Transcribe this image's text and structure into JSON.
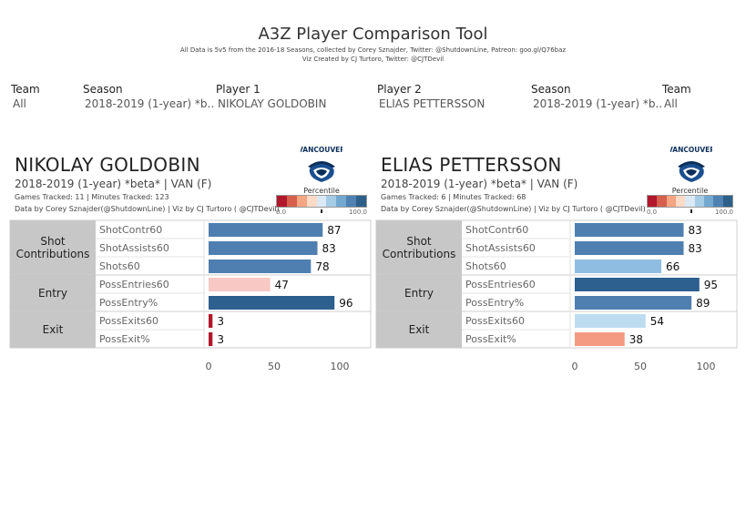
{
  "header": {
    "title": "A3Z Player Comparison Tool",
    "subtitle_line1": "All Data is 5v5 from the 2016-18 Seasons, collected by Corey Sznajder, Twitter: @ShutdownLine, Patreon: goo.gl/Q76baz",
    "subtitle_line2": "Viz Created by CJ Turtoro, Twitter: @CJTDevil"
  },
  "filters": [
    {
      "label": "Team",
      "value": "All"
    },
    {
      "label": "Season",
      "value": "2018-2019 (1-year) *b.."
    },
    {
      "label": "Player 1",
      "value": "NIKOLAY GOLDOBIN"
    },
    {
      "label": "Player 2",
      "value": "ELIAS PETTERSSON"
    },
    {
      "label": "Season",
      "value": "2018-2019 (1-year) *b.."
    },
    {
      "label": "Team",
      "value": "All"
    }
  ],
  "legend": {
    "title": "Percentile",
    "min_label": "0.0",
    "max_label": "100.0",
    "colors": [
      "#b2182b",
      "#d6604d",
      "#f4a582",
      "#fddbc7",
      "#dbe9f6",
      "#a6cbe5",
      "#73a8d1",
      "#4f81b3",
      "#2c5f8a"
    ]
  },
  "colors": {
    "bar_dark_blue": "#2d5f8f",
    "bar_mid_blue": "#4f7fb0",
    "bar_light_blue": "#8fbde1",
    "bar_pale_blue": "#bedcf0",
    "bar_pale_red": "#f7c8c4",
    "bar_salmon": "#f59a82",
    "bar_dark_red": "#b2182b",
    "category_bg": "#c7c7c7"
  },
  "players": [
    {
      "name": "NIKOLAY GOLDOBIN",
      "info": "2018-2019 (1-year) *beta* | VAN (F)",
      "games": "Games Tracked: 11  | Minutes Tracked: 123",
      "credit": "Data by Corey Sznajder(@ShutdownLine) | Viz by CJ Turtoro ( @CJTDevil)",
      "team_logo": "VANCOUVER",
      "legend_marker": 0.49,
      "chart_data": {
        "type": "bar",
        "orientation": "horizontal",
        "groups": [
          {
            "label": "Shot Contributions",
            "metrics": [
              {
                "name": "ShotContr60",
                "value": 87,
                "color": "#4f7fb0"
              },
              {
                "name": "ShotAssists60",
                "value": 83,
                "color": "#4f7fb0"
              },
              {
                "name": "Shots60",
                "value": 78,
                "color": "#4f7fb0"
              }
            ]
          },
          {
            "label": "Entry",
            "metrics": [
              {
                "name": "PossEntries60",
                "value": 47,
                "color": "#f7c8c4"
              },
              {
                "name": "PossEntry%",
                "value": 96,
                "color": "#2d5f8f"
              }
            ]
          },
          {
            "label": "Exit",
            "metrics": [
              {
                "name": "PossExits60",
                "value": 3,
                "color": "#b2182b"
              },
              {
                "name": "PossExit%",
                "value": 3,
                "color": "#b2182b"
              }
            ]
          }
        ],
        "xlim": [
          0,
          100
        ],
        "x_ticks": [
          0,
          50,
          100
        ],
        "grid": false
      }
    },
    {
      "name": "ELIAS PETTERSSON",
      "info": "2018-2019 (1-year) *beta* | VAN (F)",
      "games": "Games Tracked: 6  | Minutes Tracked: 68",
      "credit": "Data by Corey Sznajder(@ShutdownLine) | Viz by CJ Turtoro ( @CJTDevil)",
      "team_logo": "VANCOUVER",
      "legend_marker": 0.5,
      "chart_data": {
        "type": "bar",
        "orientation": "horizontal",
        "groups": [
          {
            "label": "Shot Contributions",
            "metrics": [
              {
                "name": "ShotContr60",
                "value": 83,
                "color": "#4f7fb0"
              },
              {
                "name": "ShotAssists60",
                "value": 83,
                "color": "#4f7fb0"
              },
              {
                "name": "Shots60",
                "value": 66,
                "color": "#8fbde1"
              }
            ]
          },
          {
            "label": "Entry",
            "metrics": [
              {
                "name": "PossEntries60",
                "value": 95,
                "color": "#2d5f8f"
              },
              {
                "name": "PossEntry%",
                "value": 89,
                "color": "#4f7fb0"
              }
            ]
          },
          {
            "label": "Exit",
            "metrics": [
              {
                "name": "PossExits60",
                "value": 54,
                "color": "#bedcf0"
              },
              {
                "name": "PossExit%",
                "value": 38,
                "color": "#f59a82"
              }
            ]
          }
        ],
        "xlim": [
          0,
          100
        ],
        "x_ticks": [
          0,
          50,
          100
        ],
        "grid": false
      }
    }
  ]
}
